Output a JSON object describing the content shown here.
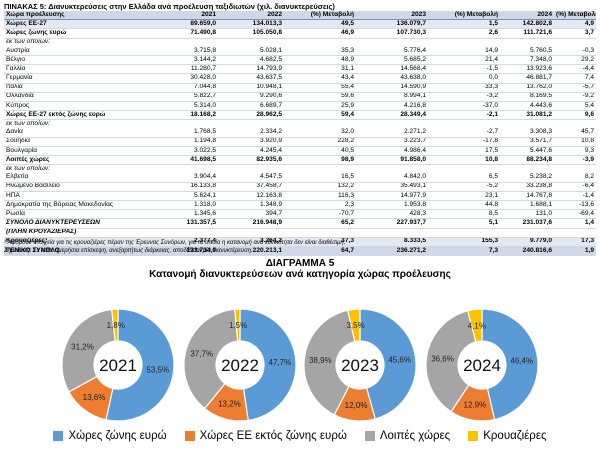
{
  "table": {
    "title": "ΠΙΝΑΚΑΣ 5: Διανυκτερεύσεις στην Ελλάδα ανά προέλευση ταξιδιωτών (χιλ. διανυκτερεύσεις)",
    "headers": [
      "Χώρα προέλευσης",
      "2021",
      "2022",
      "(%) Μεταβολή",
      "2023",
      "(%) Μεταβολή",
      "2024",
      "(%) Μεταβολή"
    ],
    "rows": [
      {
        "style": "bold shade",
        "cells": [
          "Χώρες ΕΕ-27",
          "89.659,0",
          "134.013,3",
          "49,5",
          "136.079,7",
          "1,5",
          "142.802,8",
          "4,9"
        ]
      },
      {
        "style": "bold",
        "cells": [
          "Χώρες ζώνης ευρώ",
          "71.490,8",
          "105.050,8",
          "46,9",
          "107.730,3",
          "2,6",
          "111.721,6",
          "3,7"
        ]
      },
      {
        "style": "label",
        "cells": [
          "εκ των οποίων:",
          "",
          "",
          "",
          "",
          "",
          "",
          ""
        ]
      },
      {
        "style": "",
        "cells": [
          "Αυστρία",
          "3.715,8",
          "5.028,1",
          "35,3",
          "5.776,4",
          "14,9",
          "5.760,5",
          "-0,3"
        ]
      },
      {
        "style": "",
        "cells": [
          "Βέλγιο",
          "3.144,2",
          "4.682,5",
          "48,9",
          "5.685,2",
          "21,4",
          "7.348,0",
          "29,2"
        ]
      },
      {
        "style": "",
        "cells": [
          "Γαλλία",
          "11.280,7",
          "14.793,9",
          "31,1",
          "14.568,4",
          "-1,5",
          "13.923,6",
          "-4,4"
        ]
      },
      {
        "style": "",
        "cells": [
          "Γερμανία",
          "30.428,0",
          "43.637,5",
          "43,4",
          "43.638,0",
          "0,0",
          "46.881,7",
          "7,4"
        ]
      },
      {
        "style": "",
        "cells": [
          "Ιταλία",
          "7.044,8",
          "10.948,1",
          "55,4",
          "14.590,9",
          "33,3",
          "13.762,0",
          "-5,7"
        ]
      },
      {
        "style": "",
        "cells": [
          "Ολλανδία",
          "5.822,7",
          "9.290,6",
          "59,6",
          "8.994,1",
          "-3,2",
          "8.169,5",
          "-9,2"
        ]
      },
      {
        "style": "",
        "cells": [
          "Κύπρος",
          "5.314,0",
          "6.689,7",
          "25,9",
          "4.216,8",
          "-37,0",
          "4.443,6",
          "5,4"
        ]
      },
      {
        "style": "bold",
        "cells": [
          "Χώρες ΕΕ-27 εκτός ζώνης ευρώ",
          "18.168,2",
          "28.962,5",
          "59,4",
          "28.349,4",
          "-2,1",
          "31.081,2",
          "9,6"
        ]
      },
      {
        "style": "label",
        "cells": [
          "εκ των οποίων:",
          "",
          "",
          "",
          "",
          "",
          "",
          ""
        ]
      },
      {
        "style": "",
        "cells": [
          "Δανία",
          "1.768,5",
          "2.334,2",
          "32,0",
          "2.271,2",
          "-2,7",
          "3.308,3",
          "45,7"
        ]
      },
      {
        "style": "",
        "cells": [
          "Σουηδία",
          "1.194,8",
          "3.920,9",
          "228,2",
          "3.223,7",
          "-17,8",
          "3.571,7",
          "10,8"
        ]
      },
      {
        "style": "",
        "cells": [
          "Βουλγαρία",
          "3.022,5",
          "4.245,4",
          "40,5",
          "4.986,4",
          "17,5",
          "5.447,6",
          "9,3"
        ]
      },
      {
        "style": "bold",
        "cells": [
          "Λοιπές χώρες",
          "41.698,5",
          "82.935,6",
          "98,9",
          "91.858,0",
          "10,8",
          "88.234,8",
          "-3,9"
        ]
      },
      {
        "style": "label",
        "cells": [
          "εκ των οποίων:",
          "",
          "",
          "",
          "",
          "",
          "",
          ""
        ]
      },
      {
        "style": "",
        "cells": [
          "Ελβετία",
          "3.904,4",
          "4.547,5",
          "16,5",
          "4.842,0",
          "6,5",
          "5.238,2",
          "8,2"
        ]
      },
      {
        "style": "",
        "cells": [
          "Ηνωμένο Βασίλειο",
          "16.133,8",
          "37.458,7",
          "132,2",
          "35.493,1",
          "-5,2",
          "33.238,8",
          "-6,4"
        ]
      },
      {
        "style": "",
        "cells": [
          "ΗΠΑ",
          "5.624,1",
          "12.163,8",
          "116,3",
          "14.977,9",
          "23,1",
          "14.767,8",
          "-1,4"
        ]
      },
      {
        "style": "",
        "cells": [
          "Δημοκρατία της Βόρειας Μακεδονίας",
          "1.318,0",
          "1.348,9",
          "2,3",
          "1.953,8",
          "44,8",
          "1.688,1",
          "-13,6"
        ]
      },
      {
        "style": "",
        "cells": [
          "Ρωσία",
          "1.345,6",
          "394,7",
          "-70,7",
          "428,3",
          "8,5",
          "131,0",
          "-69,4"
        ]
      },
      {
        "style": "bold italic",
        "cells": [
          "ΣΥΝΟΛΟ ΔΙΑΝΥΚΤΕΡΕΥΣΕΩΝ",
          "131.357,5",
          "216.948,9",
          "65,2",
          "227.937,7",
          "5,1",
          "231.037,6",
          "1,4"
        ]
      },
      {
        "style": "bold italic",
        "cells": [
          "(ΠΛΗΝ ΚΡΟΥΑΖΙΕΡΑΣ)",
          "",
          "",
          "",
          "",
          "",
          "",
          ""
        ]
      },
      {
        "style": "bold shade",
        "cells": [
          "Κρουαζιέρες¹",
          "2.377,4",
          "3.264,2",
          "37,3",
          "8.333,5",
          "155,3",
          "9.779,0",
          "17,3"
        ]
      },
      {
        "style": "total",
        "cells": [
          "ΓΕΝΙΚΟ ΣΥΝΟΛΟ",
          "133.734,9",
          "220.213,1",
          "64,7",
          "236.271,2",
          "7,3",
          "240.816,6",
          "1,9"
        ]
      }
    ],
    "notes": [
      "¹ Αφορούν στοιχεία για τις κρουαζιέρες πέραν της Έρευνας Συνόρων, για τα οποία η κατανομή ανά εθνικότητα δεν είναι διαθέσιμη.",
      "Σημείωση: Σε κάθε ημερήσια επίσκεψη, ανεξαρτήτως διάρκειας, αποδίδεται μία διανυκτέρευση."
    ]
  },
  "figure": {
    "label": "ΔΙΑΓΡΑΜΜΑ 5",
    "title": "Κατανομή διανυκτερεύσεων ανά κατηγορία χώρας προέλευσης"
  },
  "chart_data": {
    "type": "pie",
    "variant": "donut",
    "legend_placement": "bottom",
    "series_names": [
      "Χώρες ζώνης ευρώ",
      "Χώρες ΕΕ εκτός ζώνης ευρώ",
      "Λοιπές χώρες",
      "Κρουαζιέρες"
    ],
    "colors": [
      "#5b9bd5",
      "#ed7d31",
      "#a5a5a5",
      "#ffc000"
    ],
    "years": [
      {
        "year": "2021",
        "values": [
          53.5,
          13.6,
          31.2,
          1.8
        ],
        "labels": [
          "53,5%",
          "13,6%",
          "31,2%",
          "1,8%"
        ]
      },
      {
        "year": "2022",
        "values": [
          47.7,
          13.2,
          37.7,
          1.5
        ],
        "labels": [
          "47,7%",
          "13,2%",
          "37,7%",
          "1,5%"
        ]
      },
      {
        "year": "2023",
        "values": [
          45.6,
          12.0,
          38.9,
          3.5
        ],
        "labels": [
          "45,6%",
          "12,0%",
          "38,9%",
          "3,5%"
        ]
      },
      {
        "year": "2024",
        "values": [
          46.4,
          12.9,
          36.6,
          4.1
        ],
        "labels": [
          "46,4%",
          "12,9%",
          "36,6%",
          "4,1%"
        ]
      }
    ]
  }
}
